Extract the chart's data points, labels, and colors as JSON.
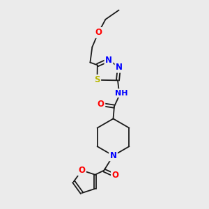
{
  "bg_color": "#ebebeb",
  "bond_color": "#1a1a1a",
  "atom_colors": {
    "O": "#ff0000",
    "N": "#0000ff",
    "S": "#b8b800",
    "H": "#4a9090",
    "C": "#1a1a1a"
  },
  "figsize": [
    3.0,
    3.0
  ],
  "dpi": 100
}
